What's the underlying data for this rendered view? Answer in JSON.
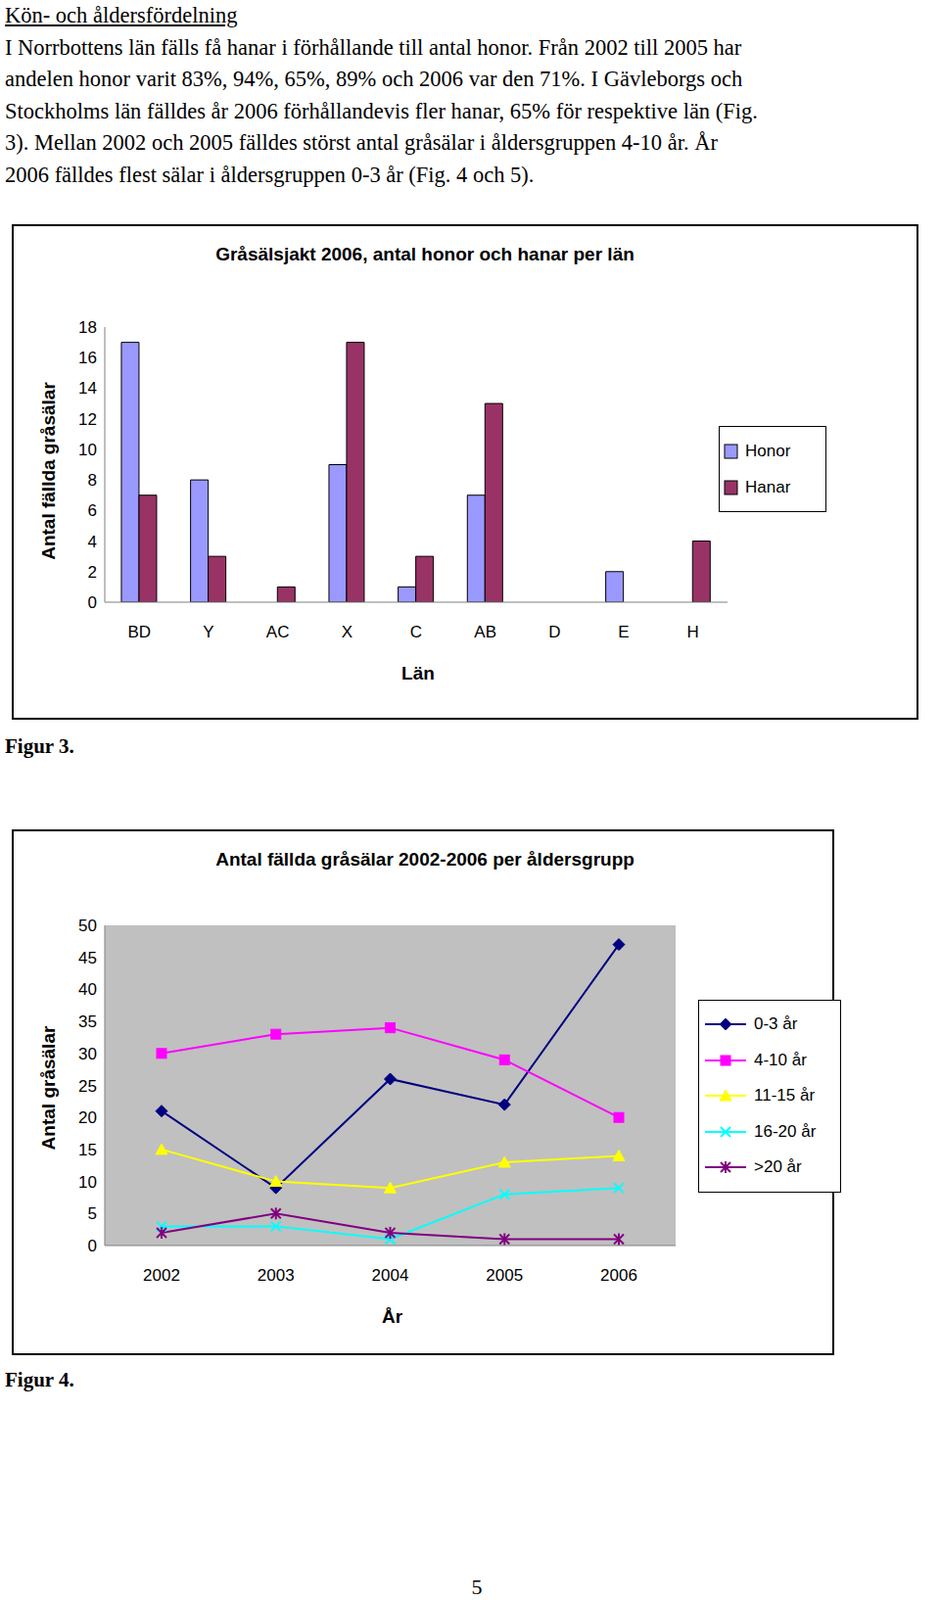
{
  "heading": "Kön- och åldersfördelning",
  "paragraph": [
    "I Norrbottens län fälls få hanar i förhållande till antal honor. Från 2002 till 2005 har",
    "andelen honor varit 83%, 94%, 65%, 89% och 2006 var den 71%. I Gävleborgs och",
    "Stockholms län fälldes år 2006 förhållandevis fler hanar, 65% för respektive län (Fig.",
    "3). Mellan 2002 och 2005 fälldes störst antal gråsälar i åldersgruppen 4-10 år. År",
    "2006 fälldes flest sälar i åldersgruppen 0-3 år (Fig. 4 och 5)."
  ],
  "chart_data": [
    {
      "type": "bar",
      "title": "Gråsälsjakt 2006, antal honor och hanar per län",
      "x_label": "Län",
      "y_label": "Antal fällda gråsälar",
      "categories": [
        "BD",
        "Y",
        "AC",
        "X",
        "C",
        "AB",
        "D",
        "E",
        "H"
      ],
      "series": [
        {
          "name": "Honor",
          "color": "#9999ff",
          "values": [
            17,
            8,
            0,
            9,
            1,
            7,
            0,
            2,
            0
          ]
        },
        {
          "name": "Hanar",
          "color": "#993366",
          "values": [
            7,
            3,
            1,
            17,
            3,
            13,
            0,
            0,
            4
          ]
        }
      ],
      "ylim": [
        0,
        18
      ],
      "yticks": [
        0,
        2,
        4,
        6,
        8,
        10,
        12,
        14,
        16,
        18
      ],
      "grid": false,
      "legend": "right"
    },
    {
      "type": "line",
      "title": "Antal fällda gråsälar 2002-2006 per åldersgrupp",
      "x_label": "År",
      "y_label": "Antal gråsälar",
      "categories": [
        "2002",
        "2003",
        "2004",
        "2005",
        "2006"
      ],
      "series": [
        {
          "name": "0-3 år",
          "color": "#000080",
          "marker": "diamond",
          "values": [
            21,
            9,
            26,
            22,
            47
          ]
        },
        {
          "name": "4-10 år",
          "color": "#ff00ff",
          "marker": "square",
          "values": [
            30,
            33,
            34,
            29,
            20
          ]
        },
        {
          "name": "11-15 år",
          "color": "#ffff00",
          "marker": "triangle",
          "values": [
            15,
            10,
            9,
            13,
            14
          ]
        },
        {
          "name": "16-20 år",
          "color": "#00ffff",
          "marker": "x",
          "values": [
            3,
            3,
            1,
            8,
            9
          ]
        },
        {
          "name": ">20 år",
          "color": "#800080",
          "marker": "star",
          "values": [
            2,
            5,
            2,
            1,
            1
          ]
        }
      ],
      "ylim": [
        0,
        50
      ],
      "yticks": [
        0,
        5,
        10,
        15,
        20,
        25,
        30,
        35,
        40,
        45,
        50
      ],
      "grid": false,
      "legend": "right"
    }
  ],
  "captions": [
    "Figur 3.",
    "Figur 4."
  ],
  "page_number": "5"
}
